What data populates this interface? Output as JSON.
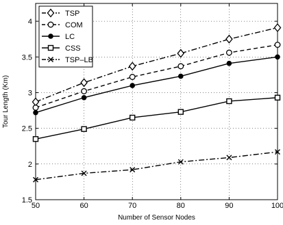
{
  "chart_data": {
    "type": "line",
    "title": "",
    "xlabel": "Number of Sensor Nodes",
    "ylabel": "Tour Length (Km)",
    "x": [
      50,
      60,
      70,
      80,
      90,
      100
    ],
    "xlim": [
      50,
      100
    ],
    "ylim": [
      1.5,
      4.25
    ],
    "xticks": [
      50,
      60,
      70,
      80,
      90,
      100
    ],
    "yticks": [
      1.5,
      2,
      2.5,
      3,
      3.5,
      4
    ],
    "xtick_labels": [
      "50",
      "60",
      "70",
      "80",
      "90",
      "100"
    ],
    "ytick_labels": [
      "1.5",
      "2",
      "2.5",
      "3",
      "3.5",
      "4"
    ],
    "grid": true,
    "legend_position": "top-left",
    "series": [
      {
        "name": "TSP",
        "values": [
          2.87,
          3.14,
          3.37,
          3.55,
          3.75,
          3.91
        ],
        "marker": "diamond",
        "dash": "dash-dot"
      },
      {
        "name": "COM",
        "values": [
          2.79,
          3.02,
          3.22,
          3.37,
          3.56,
          3.67
        ],
        "marker": "circle-open",
        "dash": "dashed"
      },
      {
        "name": "LC",
        "values": [
          2.72,
          2.93,
          3.1,
          3.23,
          3.41,
          3.5
        ],
        "marker": "circle-filled",
        "dash": "solid"
      },
      {
        "name": "CSS",
        "values": [
          2.35,
          2.49,
          2.65,
          2.73,
          2.88,
          2.93
        ],
        "marker": "square",
        "dash": "solid"
      },
      {
        "name": "TSP–LB",
        "values": [
          1.78,
          1.87,
          1.92,
          2.03,
          2.09,
          2.17
        ],
        "marker": "x",
        "dash": "dash-dot"
      }
    ]
  }
}
